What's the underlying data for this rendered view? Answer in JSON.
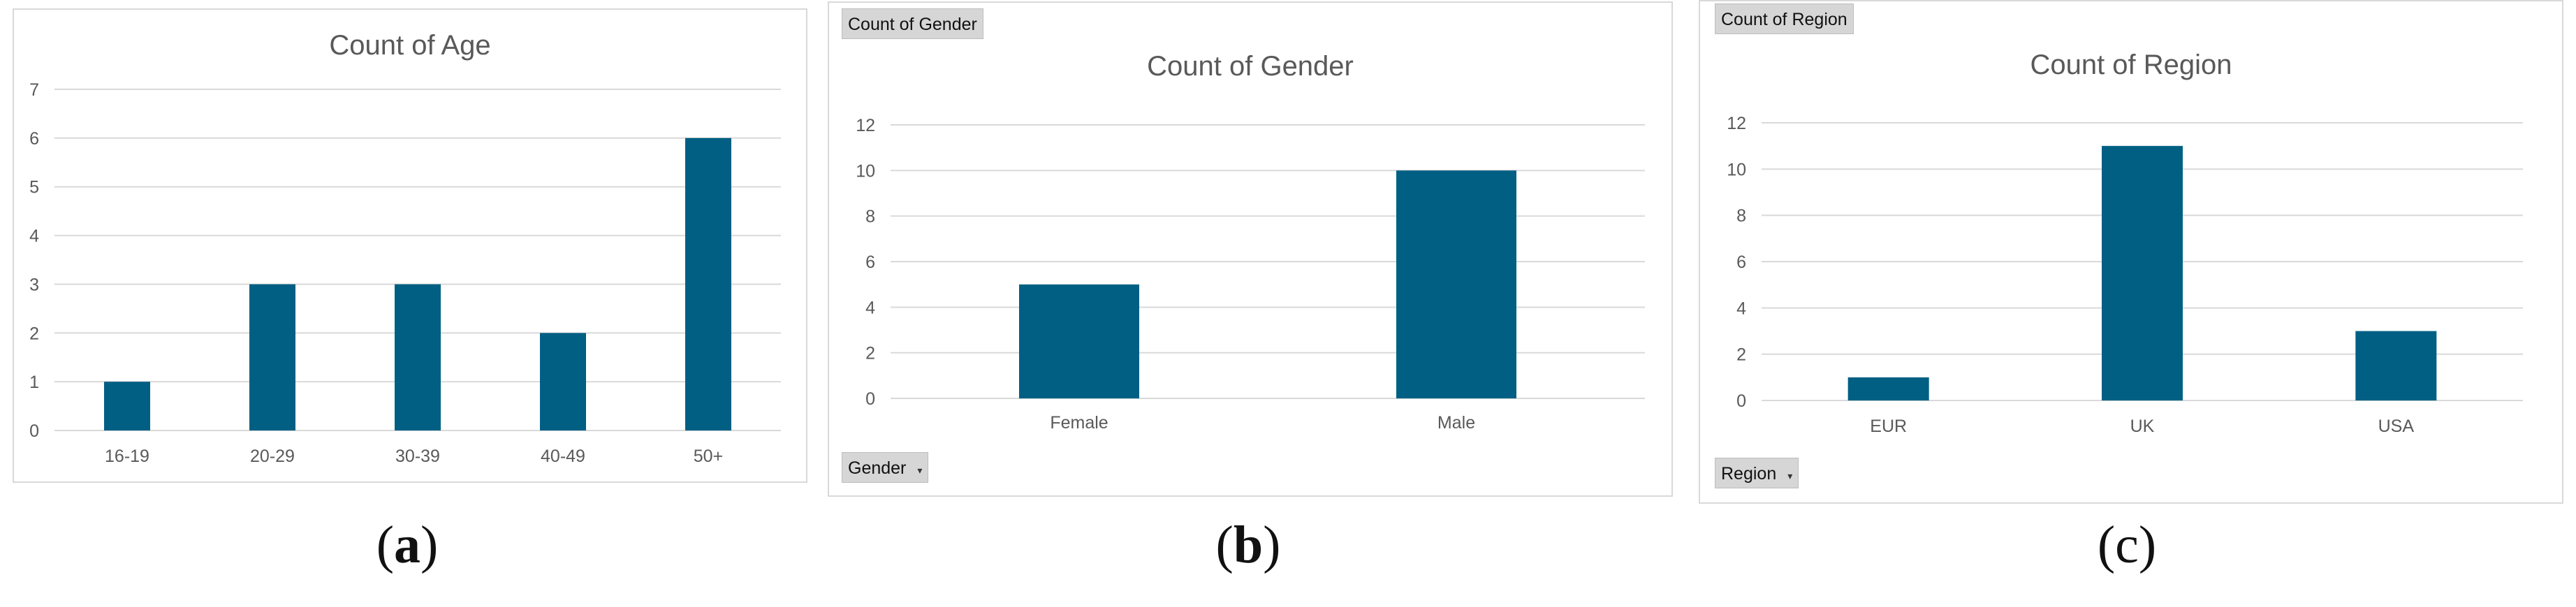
{
  "colors": {
    "bar": "#005f83",
    "grid": "#d9d9d9",
    "text": "#595959"
  },
  "pivot_buttons": {
    "b_value": "Count of Gender",
    "b_field": "Gender",
    "c_value": "Count of Region",
    "c_field": "Region",
    "dropdown_icon": "chevron-down-icon"
  },
  "captions": {
    "a": "a",
    "b": "b",
    "c": "c"
  },
  "chart_data": [
    {
      "type": "bar",
      "title": "Count of Age",
      "categories": [
        "16-19",
        "20-29",
        "30-39",
        "40-49",
        "50+"
      ],
      "values": [
        1,
        3,
        3,
        2,
        6
      ],
      "ylim": [
        0,
        7
      ],
      "yticks": [
        0,
        1,
        2,
        3,
        4,
        5,
        6,
        7
      ],
      "grid": true,
      "xlabel": "",
      "ylabel": ""
    },
    {
      "type": "bar",
      "title": "Count of Gender",
      "categories": [
        "Female",
        "Male"
      ],
      "values": [
        5,
        10
      ],
      "ylim": [
        0,
        12
      ],
      "yticks": [
        0,
        2,
        4,
        6,
        8,
        10,
        12
      ],
      "grid": true,
      "xlabel": "",
      "ylabel": ""
    },
    {
      "type": "bar",
      "title": "Count of Region",
      "categories": [
        "EUR",
        "UK",
        "USA"
      ],
      "values": [
        1,
        11,
        3
      ],
      "ylim": [
        0,
        12
      ],
      "yticks": [
        0,
        2,
        4,
        6,
        8,
        10,
        12
      ],
      "grid": true,
      "xlabel": "",
      "ylabel": ""
    }
  ]
}
